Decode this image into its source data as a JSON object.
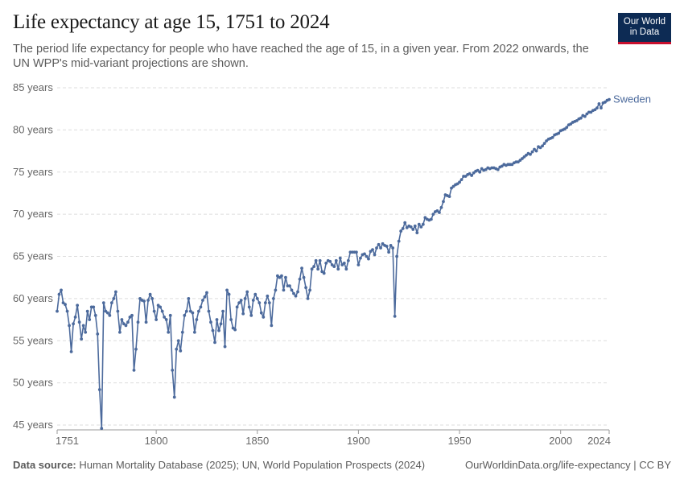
{
  "header": {
    "title": "Life expectancy at age 15, 1751 to 2024",
    "subtitle": "The period life expectancy for people who have reached the age of 15, in a given year. From 2022 onwards, the UN WPP's mid-variant projections are shown.",
    "logo_line1": "Our World",
    "logo_line2": "in Data"
  },
  "footer": {
    "source_label": "Data source:",
    "source_text": "Human Mortality Database (2025); UN, World Population Prospects (2024)",
    "link_text": "OurWorldinData.org/life-expectancy | CC BY"
  },
  "colors": {
    "series": "#4c6a9c",
    "grid": "#dddddd",
    "text": "#5b5b5b"
  },
  "chart_data": {
    "type": "line",
    "title": "Life expectancy at age 15, 1751 to 2024",
    "xlabel": "",
    "ylabel": "",
    "xlim": [
      1751,
      2024
    ],
    "ylim": [
      45,
      85
    ],
    "x_ticks": [
      1751,
      1800,
      1850,
      1900,
      1950,
      2000,
      2024
    ],
    "y_ticks": [
      45,
      50,
      55,
      60,
      65,
      70,
      75,
      80,
      85
    ],
    "y_tick_suffix": " years",
    "grid": "horizontal dashed",
    "legend": "end-of-line label",
    "series": [
      {
        "name": "Sweden",
        "points": [
          [
            1751,
            58.5
          ],
          [
            1752,
            60.5
          ],
          [
            1753,
            61.0
          ],
          [
            1754,
            59.5
          ],
          [
            1755,
            59.3
          ],
          [
            1756,
            58.5
          ],
          [
            1757,
            56.8
          ],
          [
            1758,
            53.7
          ],
          [
            1759,
            57.0
          ],
          [
            1760,
            57.8
          ],
          [
            1761,
            59.2
          ],
          [
            1762,
            57.2
          ],
          [
            1763,
            55.2
          ],
          [
            1764,
            56.8
          ],
          [
            1765,
            56.0
          ],
          [
            1766,
            58.5
          ],
          [
            1767,
            57.5
          ],
          [
            1768,
            59.0
          ],
          [
            1769,
            59.0
          ],
          [
            1770,
            58.0
          ],
          [
            1771,
            55.8
          ],
          [
            1772,
            49.2
          ],
          [
            1773,
            44.6
          ],
          [
            1774,
            59.5
          ],
          [
            1775,
            58.5
          ],
          [
            1776,
            58.3
          ],
          [
            1777,
            58.0
          ],
          [
            1778,
            59.5
          ],
          [
            1779,
            60.0
          ],
          [
            1780,
            60.8
          ],
          [
            1781,
            58.5
          ],
          [
            1782,
            56.0
          ],
          [
            1783,
            57.5
          ],
          [
            1784,
            57.0
          ],
          [
            1785,
            56.8
          ],
          [
            1786,
            57.2
          ],
          [
            1787,
            57.8
          ],
          [
            1788,
            58.0
          ],
          [
            1789,
            51.5
          ],
          [
            1790,
            54.0
          ],
          [
            1791,
            57.2
          ],
          [
            1792,
            60.0
          ],
          [
            1793,
            59.8
          ],
          [
            1794,
            59.7
          ],
          [
            1795,
            57.2
          ],
          [
            1796,
            59.8
          ],
          [
            1797,
            60.5
          ],
          [
            1798,
            60.0
          ],
          [
            1799,
            58.5
          ],
          [
            1800,
            57.5
          ],
          [
            1801,
            59.2
          ],
          [
            1802,
            59.0
          ],
          [
            1803,
            58.5
          ],
          [
            1804,
            57.8
          ],
          [
            1805,
            57.5
          ],
          [
            1806,
            56.0
          ],
          [
            1807,
            58.0
          ],
          [
            1808,
            51.5
          ],
          [
            1809,
            48.3
          ],
          [
            1810,
            54.0
          ],
          [
            1811,
            55.0
          ],
          [
            1812,
            53.8
          ],
          [
            1813,
            56.0
          ],
          [
            1814,
            58.0
          ],
          [
            1815,
            58.5
          ],
          [
            1816,
            60.0
          ],
          [
            1817,
            58.5
          ],
          [
            1818,
            58.3
          ],
          [
            1819,
            56.0
          ],
          [
            1820,
            57.5
          ],
          [
            1821,
            58.5
          ],
          [
            1822,
            59.0
          ],
          [
            1823,
            59.8
          ],
          [
            1824,
            60.2
          ],
          [
            1825,
            60.7
          ],
          [
            1826,
            58.5
          ],
          [
            1827,
            57.2
          ],
          [
            1828,
            56.2
          ],
          [
            1829,
            54.8
          ],
          [
            1830,
            57.5
          ],
          [
            1831,
            56.2
          ],
          [
            1832,
            57.0
          ],
          [
            1833,
            58.5
          ],
          [
            1834,
            54.3
          ],
          [
            1835,
            61.0
          ],
          [
            1836,
            60.5
          ],
          [
            1837,
            57.5
          ],
          [
            1838,
            56.5
          ],
          [
            1839,
            56.3
          ],
          [
            1840,
            59.0
          ],
          [
            1841,
            59.5
          ],
          [
            1842,
            59.8
          ],
          [
            1843,
            58.2
          ],
          [
            1844,
            60.0
          ],
          [
            1845,
            60.8
          ],
          [
            1846,
            59.0
          ],
          [
            1847,
            58.0
          ],
          [
            1848,
            59.8
          ],
          [
            1849,
            60.5
          ],
          [
            1850,
            60.0
          ],
          [
            1851,
            59.5
          ],
          [
            1852,
            58.3
          ],
          [
            1853,
            57.8
          ],
          [
            1854,
            59.5
          ],
          [
            1855,
            60.3
          ],
          [
            1856,
            59.5
          ],
          [
            1857,
            56.8
          ],
          [
            1858,
            60.0
          ],
          [
            1859,
            61.0
          ],
          [
            1860,
            62.7
          ],
          [
            1861,
            62.5
          ],
          [
            1862,
            62.7
          ],
          [
            1863,
            61.0
          ],
          [
            1864,
            62.5
          ],
          [
            1865,
            61.5
          ],
          [
            1866,
            61.5
          ],
          [
            1867,
            61.0
          ],
          [
            1868,
            60.6
          ],
          [
            1869,
            60.3
          ],
          [
            1870,
            60.8
          ],
          [
            1871,
            62.3
          ],
          [
            1872,
            63.6
          ],
          [
            1873,
            62.5
          ],
          [
            1874,
            61.3
          ],
          [
            1875,
            60.0
          ],
          [
            1876,
            61.0
          ],
          [
            1877,
            63.5
          ],
          [
            1878,
            63.8
          ],
          [
            1879,
            64.5
          ],
          [
            1880,
            63.5
          ],
          [
            1881,
            64.5
          ],
          [
            1882,
            63.2
          ],
          [
            1883,
            63.0
          ],
          [
            1884,
            64.2
          ],
          [
            1885,
            64.5
          ],
          [
            1886,
            64.4
          ],
          [
            1887,
            64.0
          ],
          [
            1888,
            63.8
          ],
          [
            1889,
            64.5
          ],
          [
            1890,
            63.5
          ],
          [
            1891,
            64.8
          ],
          [
            1892,
            64.0
          ],
          [
            1893,
            64.2
          ],
          [
            1894,
            63.5
          ],
          [
            1895,
            64.5
          ],
          [
            1896,
            65.5
          ],
          [
            1897,
            65.5
          ],
          [
            1898,
            65.5
          ],
          [
            1899,
            65.5
          ],
          [
            1900,
            64.0
          ],
          [
            1901,
            64.8
          ],
          [
            1902,
            65.2
          ],
          [
            1903,
            65.3
          ],
          [
            1904,
            65.0
          ],
          [
            1905,
            64.7
          ],
          [
            1906,
            65.6
          ],
          [
            1907,
            65.8
          ],
          [
            1908,
            65.2
          ],
          [
            1909,
            66.0
          ],
          [
            1910,
            66.4
          ],
          [
            1911,
            66.0
          ],
          [
            1912,
            66.5
          ],
          [
            1913,
            66.3
          ],
          [
            1914,
            66.2
          ],
          [
            1915,
            65.5
          ],
          [
            1916,
            66.3
          ],
          [
            1917,
            66.0
          ],
          [
            1918,
            57.9
          ],
          [
            1919,
            65.0
          ],
          [
            1920,
            66.8
          ],
          [
            1921,
            68.0
          ],
          [
            1922,
            68.3
          ],
          [
            1923,
            69.0
          ],
          [
            1924,
            68.4
          ],
          [
            1925,
            68.6
          ],
          [
            1926,
            68.5
          ],
          [
            1927,
            68.2
          ],
          [
            1928,
            68.6
          ],
          [
            1929,
            67.8
          ],
          [
            1930,
            68.8
          ],
          [
            1931,
            68.5
          ],
          [
            1932,
            68.8
          ],
          [
            1933,
            69.6
          ],
          [
            1934,
            69.4
          ],
          [
            1935,
            69.3
          ],
          [
            1936,
            69.4
          ],
          [
            1937,
            70.0
          ],
          [
            1938,
            70.3
          ],
          [
            1939,
            70.4
          ],
          [
            1940,
            70.2
          ],
          [
            1941,
            70.8
          ],
          [
            1942,
            71.5
          ],
          [
            1943,
            72.3
          ],
          [
            1944,
            72.2
          ],
          [
            1945,
            72.1
          ],
          [
            1946,
            73.1
          ],
          [
            1947,
            73.3
          ],
          [
            1948,
            73.5
          ],
          [
            1949,
            73.6
          ],
          [
            1950,
            73.8
          ],
          [
            1951,
            74.1
          ],
          [
            1952,
            74.5
          ],
          [
            1953,
            74.5
          ],
          [
            1954,
            74.7
          ],
          [
            1955,
            74.8
          ],
          [
            1956,
            74.6
          ],
          [
            1957,
            74.9
          ],
          [
            1958,
            75.1
          ],
          [
            1959,
            75.2
          ],
          [
            1960,
            75.0
          ],
          [
            1961,
            75.4
          ],
          [
            1962,
            75.2
          ],
          [
            1963,
            75.3
          ],
          [
            1964,
            75.5
          ],
          [
            1965,
            75.4
          ],
          [
            1966,
            75.5
          ],
          [
            1967,
            75.5
          ],
          [
            1968,
            75.4
          ],
          [
            1969,
            75.3
          ],
          [
            1970,
            75.6
          ],
          [
            1971,
            75.7
          ],
          [
            1972,
            75.9
          ],
          [
            1973,
            75.8
          ],
          [
            1974,
            75.9
          ],
          [
            1975,
            75.9
          ],
          [
            1976,
            75.9
          ],
          [
            1977,
            76.1
          ],
          [
            1978,
            76.2
          ],
          [
            1979,
            76.2
          ],
          [
            1980,
            76.4
          ],
          [
            1981,
            76.6
          ],
          [
            1982,
            76.8
          ],
          [
            1983,
            77.0
          ],
          [
            1984,
            77.2
          ],
          [
            1985,
            77.1
          ],
          [
            1986,
            77.4
          ],
          [
            1987,
            77.7
          ],
          [
            1988,
            77.5
          ],
          [
            1989,
            78.0
          ],
          [
            1990,
            77.9
          ],
          [
            1991,
            78.1
          ],
          [
            1992,
            78.4
          ],
          [
            1993,
            78.7
          ],
          [
            1994,
            78.9
          ],
          [
            1995,
            79.0
          ],
          [
            1996,
            79.1
          ],
          [
            1997,
            79.4
          ],
          [
            1998,
            79.5
          ],
          [
            1999,
            79.6
          ],
          [
            2000,
            79.9
          ],
          [
            2001,
            80.0
          ],
          [
            2002,
            80.1
          ],
          [
            2003,
            80.3
          ],
          [
            2004,
            80.6
          ],
          [
            2005,
            80.7
          ],
          [
            2006,
            80.9
          ],
          [
            2007,
            81.0
          ],
          [
            2008,
            81.1
          ],
          [
            2009,
            81.3
          ],
          [
            2010,
            81.4
          ],
          [
            2011,
            81.7
          ],
          [
            2012,
            81.6
          ],
          [
            2013,
            81.9
          ],
          [
            2014,
            82.1
          ],
          [
            2015,
            82.1
          ],
          [
            2016,
            82.3
          ],
          [
            2017,
            82.4
          ],
          [
            2018,
            82.6
          ],
          [
            2019,
            83.1
          ],
          [
            2020,
            82.6
          ],
          [
            2021,
            83.2
          ],
          [
            2022,
            83.3
          ],
          [
            2023,
            83.5
          ],
          [
            2024,
            83.6
          ]
        ]
      }
    ]
  }
}
